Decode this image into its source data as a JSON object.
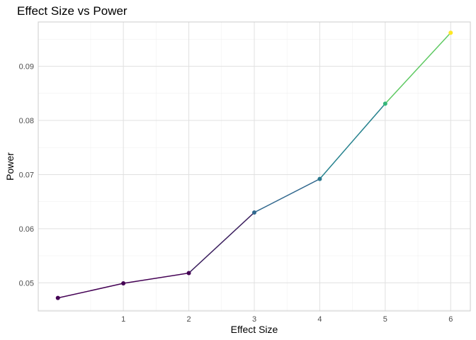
{
  "chart_data": {
    "type": "line",
    "title": "Effect Size vs Power",
    "xlabel": "Effect Size",
    "ylabel": "Power",
    "x": [
      0,
      1,
      2,
      3,
      4,
      5,
      6
    ],
    "y": [
      0.0472,
      0.0499,
      0.0518,
      0.063,
      0.0692,
      0.0831,
      0.0962
    ],
    "point_colors": [
      "#440154",
      "#440154",
      "#440154",
      "#31688e",
      "#2a788e",
      "#35b779",
      "#fde725"
    ],
    "segment_colors": [
      "#440154",
      "#440154",
      "#3b1f5e",
      "#31688e",
      "#26828e",
      "#5ec962"
    ],
    "xlim": [
      -0.3,
      6.3
    ],
    "ylim": [
      0.0448,
      0.0982
    ],
    "x_ticks": [
      1,
      2,
      3,
      4,
      5,
      6
    ],
    "y_ticks": [
      0.05,
      0.06,
      0.07,
      0.08,
      0.09
    ],
    "y_tick_labels": [
      "0.05",
      "0.06",
      "0.07",
      "0.08",
      "0.09"
    ],
    "grid": true,
    "legend": "none"
  }
}
